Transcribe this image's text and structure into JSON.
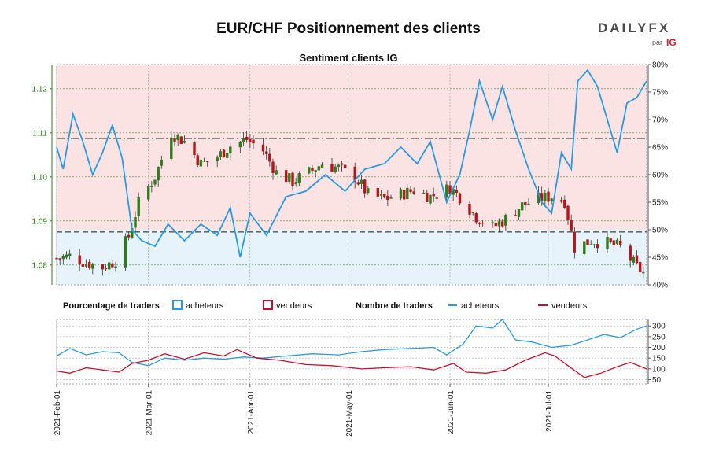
{
  "header": {
    "title": "EUR/CHF Positionnement des clients",
    "subtitle": "Sentiment clients IG"
  },
  "logo": {
    "main": "DAILYFX",
    "sub": "par",
    "brand": "IG"
  },
  "legend": {
    "pct_title": "Pourcentage de traders",
    "pct_buyers": "acheteurs",
    "pct_sellers": "vendeurs",
    "count_title": "Nombre de traders",
    "count_buyers": "acheteurs",
    "count_sellers": "vendeurs"
  },
  "colors": {
    "buyers": "#2b9be0",
    "sellers": "#c8102e",
    "candle_up": "#2e7d1b",
    "candle_down": "#b5151b",
    "area_sellers": "#fbe3e4",
    "area_buyers": "#e6f3fb"
  },
  "chart_data": [
    {
      "type": "candlestick",
      "pair": "EUR/CHF",
      "y_left_label": "price",
      "y_left_ticks": [
        1.08,
        1.09,
        1.1,
        1.11,
        1.12
      ],
      "y_left_range": [
        1.0755,
        1.1255
      ],
      "y_right_ticks": [
        "40%",
        "45%",
        "50%",
        "55%",
        "60%",
        "65%",
        "70%",
        "75%",
        "80%"
      ],
      "y_right_range": [
        40,
        80
      ],
      "x_range": [
        "2021-02-01",
        "2021-07-31"
      ],
      "x_ticks": [
        "2021-Feb-01",
        "2021-Mar-01",
        "2021-Apr-01",
        "2021-May-01",
        "2021-Jun-01",
        "2021-Jul-01"
      ],
      "reference_lines": {
        "price": 1.0875,
        "percent_50": 50,
        "percent_67": 66.5
      },
      "close_keypoints": [
        {
          "date": "2021-02-01",
          "close": 1.0815
        },
        {
          "date": "2021-02-05",
          "close": 1.082
        },
        {
          "date": "2021-02-10",
          "close": 1.0805
        },
        {
          "date": "2021-02-15",
          "close": 1.0795
        },
        {
          "date": "2021-02-19",
          "close": 1.081
        },
        {
          "date": "2021-02-23",
          "close": 1.0865
        },
        {
          "date": "2021-02-26",
          "close": 1.094
        },
        {
          "date": "2021-03-03",
          "close": 1.1
        },
        {
          "date": "2021-03-08",
          "close": 1.11
        },
        {
          "date": "2021-03-12",
          "close": 1.108
        },
        {
          "date": "2021-03-17",
          "close": 1.103
        },
        {
          "date": "2021-03-22",
          "close": 1.1045
        },
        {
          "date": "2021-03-26",
          "close": 1.107
        },
        {
          "date": "2021-03-31",
          "close": 1.1085
        },
        {
          "date": "2021-04-05",
          "close": 1.106
        },
        {
          "date": "2021-04-09",
          "close": 1.101
        },
        {
          "date": "2021-04-14",
          "close": 1.099
        },
        {
          "date": "2021-04-19",
          "close": 1.101
        },
        {
          "date": "2021-04-23",
          "close": 1.103
        },
        {
          "date": "2021-04-28",
          "close": 1.102
        },
        {
          "date": "2021-05-03",
          "close": 1.1
        },
        {
          "date": "2021-05-07",
          "close": 1.096
        },
        {
          "date": "2021-05-12",
          "close": 1.095
        },
        {
          "date": "2021-05-17",
          "close": 1.096
        },
        {
          "date": "2021-05-21",
          "close": 1.097
        },
        {
          "date": "2021-05-26",
          "close": 1.0955
        },
        {
          "date": "2021-06-01",
          "close": 1.0975
        },
        {
          "date": "2021-06-04",
          "close": 1.0955
        },
        {
          "date": "2021-06-09",
          "close": 1.091
        },
        {
          "date": "2021-06-14",
          "close": 1.0885
        },
        {
          "date": "2021-06-18",
          "close": 1.0905
        },
        {
          "date": "2021-06-23",
          "close": 1.0935
        },
        {
          "date": "2021-06-28",
          "close": 1.095
        },
        {
          "date": "2021-07-02",
          "close": 1.0955
        },
        {
          "date": "2021-07-06",
          "close": 1.0945
        },
        {
          "date": "2021-07-09",
          "close": 1.084
        },
        {
          "date": "2021-07-14",
          "close": 1.0855
        },
        {
          "date": "2021-07-19",
          "close": 1.085
        },
        {
          "date": "2021-07-23",
          "close": 1.084
        },
        {
          "date": "2021-07-28",
          "close": 1.0795
        },
        {
          "date": "2021-07-31",
          "close": 1.0775
        }
      ],
      "buyers_pct_keypoints": [
        {
          "date": "2021-02-01",
          "pct": 65
        },
        {
          "date": "2021-02-03",
          "pct": 61
        },
        {
          "date": "2021-02-06",
          "pct": 71
        },
        {
          "date": "2021-02-09",
          "pct": 66
        },
        {
          "date": "2021-02-12",
          "pct": 60
        },
        {
          "date": "2021-02-15",
          "pct": 64
        },
        {
          "date": "2021-02-18",
          "pct": 69
        },
        {
          "date": "2021-02-21",
          "pct": 63
        },
        {
          "date": "2021-02-24",
          "pct": 50
        },
        {
          "date": "2021-02-27",
          "pct": 48
        },
        {
          "date": "2021-03-03",
          "pct": 47
        },
        {
          "date": "2021-03-07",
          "pct": 51
        },
        {
          "date": "2021-03-12",
          "pct": 48
        },
        {
          "date": "2021-03-17",
          "pct": 51
        },
        {
          "date": "2021-03-22",
          "pct": 49
        },
        {
          "date": "2021-03-26",
          "pct": 54
        },
        {
          "date": "2021-03-29",
          "pct": 45
        },
        {
          "date": "2021-04-01",
          "pct": 53
        },
        {
          "date": "2021-04-06",
          "pct": 49
        },
        {
          "date": "2021-04-12",
          "pct": 56
        },
        {
          "date": "2021-04-18",
          "pct": 57
        },
        {
          "date": "2021-04-24",
          "pct": 60
        },
        {
          "date": "2021-04-30",
          "pct": 57
        },
        {
          "date": "2021-05-06",
          "pct": 61
        },
        {
          "date": "2021-05-12",
          "pct": 62
        },
        {
          "date": "2021-05-17",
          "pct": 65
        },
        {
          "date": "2021-05-22",
          "pct": 62
        },
        {
          "date": "2021-05-26",
          "pct": 66
        },
        {
          "date": "2021-05-31",
          "pct": 55
        },
        {
          "date": "2021-06-04",
          "pct": 60
        },
        {
          "date": "2021-06-07",
          "pct": 68
        },
        {
          "date": "2021-06-10",
          "pct": 77
        },
        {
          "date": "2021-06-14",
          "pct": 70
        },
        {
          "date": "2021-06-17",
          "pct": 76
        },
        {
          "date": "2021-06-21",
          "pct": 68
        },
        {
          "date": "2021-06-25",
          "pct": 61
        },
        {
          "date": "2021-06-29",
          "pct": 55
        },
        {
          "date": "2021-07-02",
          "pct": 53
        },
        {
          "date": "2021-07-05",
          "pct": 64
        },
        {
          "date": "2021-07-08",
          "pct": 61
        },
        {
          "date": "2021-07-10",
          "pct": 77
        },
        {
          "date": "2021-07-13",
          "pct": 79
        },
        {
          "date": "2021-07-16",
          "pct": 76
        },
        {
          "date": "2021-07-19",
          "pct": 70
        },
        {
          "date": "2021-07-22",
          "pct": 64
        },
        {
          "date": "2021-07-25",
          "pct": 73
        },
        {
          "date": "2021-07-28",
          "pct": 74
        },
        {
          "date": "2021-07-31",
          "pct": 77
        }
      ]
    },
    {
      "type": "line",
      "y_ticks": [
        50,
        100,
        150,
        200,
        250,
        300
      ],
      "y_range": [
        30,
        330
      ],
      "series": [
        {
          "name": "acheteurs",
          "points": [
            {
              "date": "2021-02-01",
              "value": 160
            },
            {
              "date": "2021-02-05",
              "value": 195
            },
            {
              "date": "2021-02-10",
              "value": 165
            },
            {
              "date": "2021-02-15",
              "value": 180
            },
            {
              "date": "2021-02-20",
              "value": 175
            },
            {
              "date": "2021-02-24",
              "value": 130
            },
            {
              "date": "2021-03-01",
              "value": 115
            },
            {
              "date": "2021-03-06",
              "value": 150
            },
            {
              "date": "2021-03-12",
              "value": 140
            },
            {
              "date": "2021-03-18",
              "value": 150
            },
            {
              "date": "2021-03-24",
              "value": 145
            },
            {
              "date": "2021-03-30",
              "value": 155
            },
            {
              "date": "2021-04-05",
              "value": 150
            },
            {
              "date": "2021-04-12",
              "value": 160
            },
            {
              "date": "2021-04-20",
              "value": 170
            },
            {
              "date": "2021-04-28",
              "value": 165
            },
            {
              "date": "2021-05-05",
              "value": 180
            },
            {
              "date": "2021-05-12",
              "value": 190
            },
            {
              "date": "2021-05-20",
              "value": 195
            },
            {
              "date": "2021-05-27",
              "value": 200
            },
            {
              "date": "2021-05-31",
              "value": 165
            },
            {
              "date": "2021-06-05",
              "value": 215
            },
            {
              "date": "2021-06-09",
              "value": 300
            },
            {
              "date": "2021-06-14",
              "value": 290
            },
            {
              "date": "2021-06-17",
              "value": 330
            },
            {
              "date": "2021-06-21",
              "value": 235
            },
            {
              "date": "2021-06-26",
              "value": 225
            },
            {
              "date": "2021-07-02",
              "value": 200
            },
            {
              "date": "2021-07-08",
              "value": 210
            },
            {
              "date": "2021-07-13",
              "value": 235
            },
            {
              "date": "2021-07-18",
              "value": 260
            },
            {
              "date": "2021-07-23",
              "value": 245
            },
            {
              "date": "2021-07-28",
              "value": 285
            },
            {
              "date": "2021-07-31",
              "value": 300
            }
          ]
        },
        {
          "name": "vendeurs",
          "points": [
            {
              "date": "2021-02-01",
              "value": 90
            },
            {
              "date": "2021-02-05",
              "value": 80
            },
            {
              "date": "2021-02-10",
              "value": 105
            },
            {
              "date": "2021-02-15",
              "value": 95
            },
            {
              "date": "2021-02-20",
              "value": 85
            },
            {
              "date": "2021-02-24",
              "value": 125
            },
            {
              "date": "2021-03-01",
              "value": 140
            },
            {
              "date": "2021-03-06",
              "value": 170
            },
            {
              "date": "2021-03-12",
              "value": 145
            },
            {
              "date": "2021-03-18",
              "value": 175
            },
            {
              "date": "2021-03-24",
              "value": 160
            },
            {
              "date": "2021-03-28",
              "value": 190
            },
            {
              "date": "2021-04-03",
              "value": 150
            },
            {
              "date": "2021-04-10",
              "value": 140
            },
            {
              "date": "2021-04-18",
              "value": 120
            },
            {
              "date": "2021-04-26",
              "value": 115
            },
            {
              "date": "2021-05-05",
              "value": 100
            },
            {
              "date": "2021-05-12",
              "value": 105
            },
            {
              "date": "2021-05-20",
              "value": 110
            },
            {
              "date": "2021-05-27",
              "value": 95
            },
            {
              "date": "2021-06-02",
              "value": 125
            },
            {
              "date": "2021-06-06",
              "value": 85
            },
            {
              "date": "2021-06-12",
              "value": 80
            },
            {
              "date": "2021-06-18",
              "value": 95
            },
            {
              "date": "2021-06-24",
              "value": 140
            },
            {
              "date": "2021-06-30",
              "value": 175
            },
            {
              "date": "2021-07-03",
              "value": 160
            },
            {
              "date": "2021-07-07",
              "value": 115
            },
            {
              "date": "2021-07-12",
              "value": 60
            },
            {
              "date": "2021-07-17",
              "value": 80
            },
            {
              "date": "2021-07-22",
              "value": 110
            },
            {
              "date": "2021-07-26",
              "value": 130
            },
            {
              "date": "2021-07-31",
              "value": 100
            }
          ]
        }
      ]
    }
  ]
}
